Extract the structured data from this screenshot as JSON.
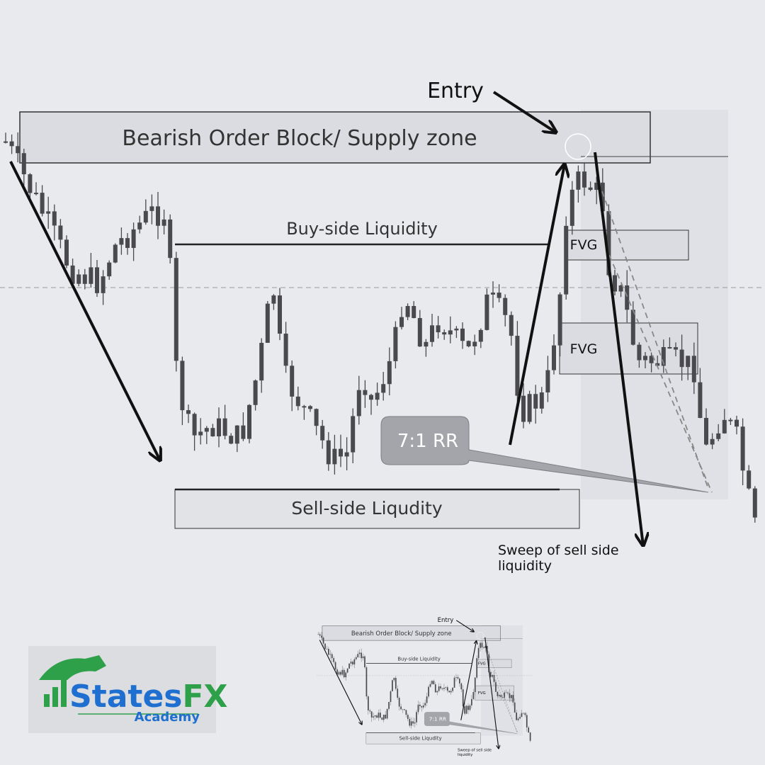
{
  "annotations": {
    "entry": "Entry",
    "supply_zone": "Bearish Order Block/ Supply zone",
    "buy_side": "Buy-side Liquidity",
    "fvg_upper": "FVG",
    "fvg_lower": "FVG",
    "risk_reward": "7:1 RR",
    "sell_side": "Sell-side Liqudity",
    "sweep": [
      "Sweep of sell side",
      "liquidity"
    ]
  },
  "logo": {
    "brand": [
      "States",
      "FX"
    ],
    "tagline": "Academy"
  }
}
